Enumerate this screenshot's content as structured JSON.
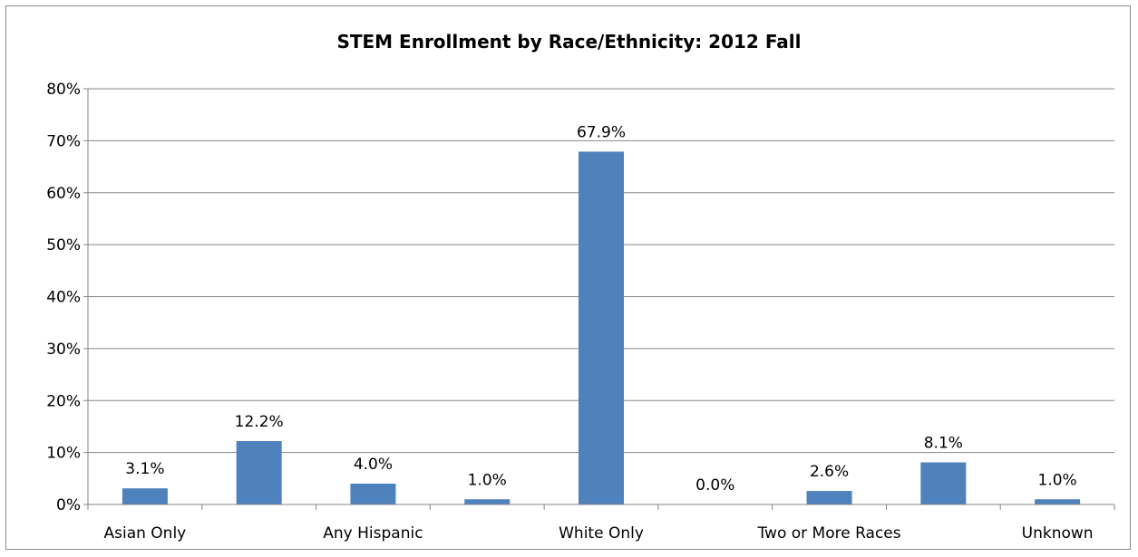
{
  "chart_data": {
    "type": "bar",
    "title": "STEM Enrollment by Race/Ethnicity: 2012 Fall",
    "xlabel": "",
    "ylabel": "",
    "ylim": [
      0,
      80
    ],
    "yticks": [
      "0%",
      "10%",
      "20%",
      "30%",
      "40%",
      "50%",
      "60%",
      "70%",
      "80%"
    ],
    "grid": true,
    "categories": [
      "Asian Only",
      "",
      "Any Hispanic",
      "",
      "White Only",
      "",
      "Two or More Races",
      "",
      "Unknown"
    ],
    "values": [
      3.1,
      12.2,
      4.0,
      1.0,
      67.9,
      0.0,
      2.6,
      8.1,
      1.0
    ],
    "data_labels": [
      "3.1%",
      "12.2%",
      "4.0%",
      "1.0%",
      "67.9%",
      "0.0%",
      "2.6%",
      "8.1%",
      "1.0%"
    ],
    "bar_color": "#4f81bd"
  }
}
